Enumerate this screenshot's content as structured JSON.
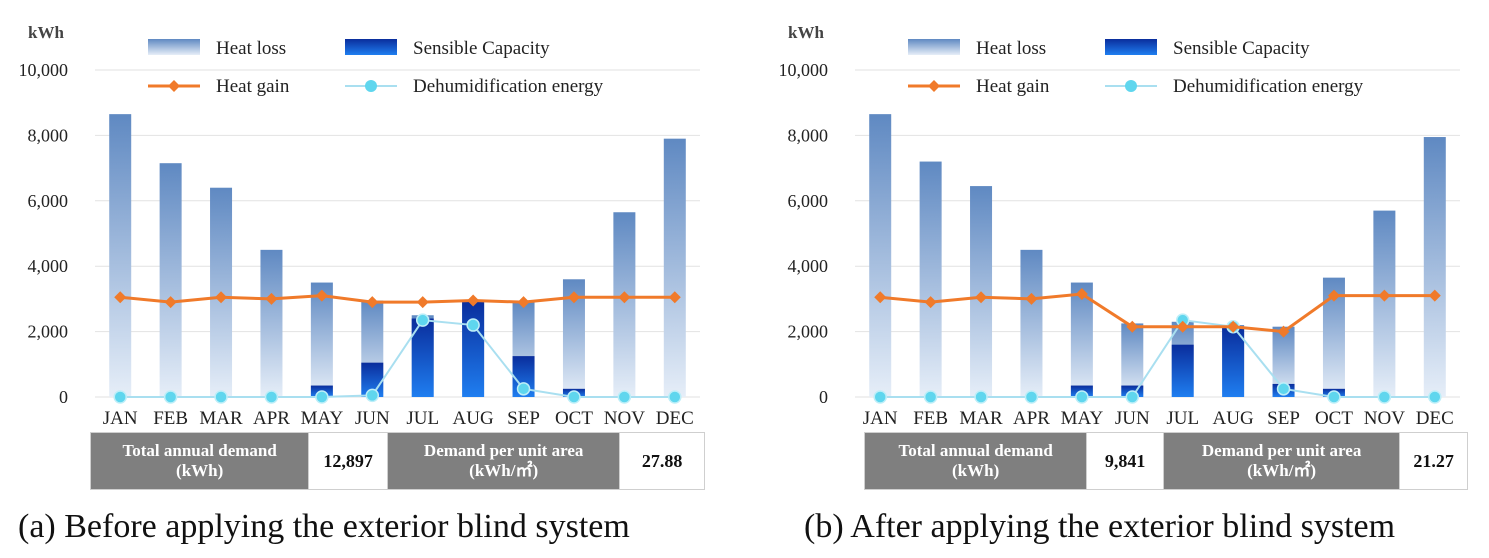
{
  "chart_data": [
    {
      "type": "bar",
      "caption": "(a) Before applying the exterior blind system",
      "ylabel": "kWh",
      "ylim": [
        0,
        10000
      ],
      "yticks": [
        "10,000",
        "8,000",
        "6,000",
        "4,000",
        "2,000",
        "0"
      ],
      "categories": [
        "JAN",
        "FEB",
        "MAR",
        "APR",
        "MAY",
        "JUN",
        "JUL",
        "AUG",
        "SEP",
        "OCT",
        "NOV",
        "DEC"
      ],
      "series": [
        {
          "name": "Heat loss",
          "kind": "bar-gradient",
          "values": [
            8650,
            7150,
            6400,
            4500,
            3500,
            2950,
            2500,
            2900,
            2900,
            3600,
            5650,
            7900
          ]
        },
        {
          "name": "Sensible Capacity",
          "kind": "bar-solid",
          "values": [
            0,
            0,
            0,
            0,
            350,
            1050,
            2400,
            2950,
            1250,
            250,
            0,
            0
          ]
        },
        {
          "name": "Heat gain",
          "kind": "line-diamond",
          "values": [
            3050,
            2900,
            3050,
            3000,
            3100,
            2900,
            2900,
            2950,
            2900,
            3050,
            3050,
            3050
          ]
        },
        {
          "name": "Dehumidification energy",
          "kind": "line-circle",
          "values": [
            0,
            0,
            0,
            0,
            0,
            50,
            2350,
            2200,
            250,
            0,
            0,
            0
          ]
        }
      ],
      "legend": [
        "Heat loss",
        "Sensible Capacity",
        "Heat gain",
        "Dehumidification energy"
      ],
      "summary": {
        "total_label_1": "Total annual demand",
        "total_label_2": "(kWh)",
        "total_value": "12,897",
        "unit_label_1": "Demand per unit area",
        "unit_label_2": "(kWh/㎡)",
        "unit_value": "27.88"
      }
    },
    {
      "type": "bar",
      "caption": "(b) After applying the exterior blind system",
      "ylabel": "kWh",
      "ylim": [
        0,
        10000
      ],
      "yticks": [
        "10,000",
        "8,000",
        "6,000",
        "4,000",
        "2,000",
        "0"
      ],
      "categories": [
        "JAN",
        "FEB",
        "MAR",
        "APR",
        "MAY",
        "JUN",
        "JUL",
        "AUG",
        "SEP",
        "OCT",
        "NOV",
        "DEC"
      ],
      "series": [
        {
          "name": "Heat loss",
          "kind": "bar-gradient",
          "values": [
            8650,
            7200,
            6450,
            4500,
            3500,
            2250,
            2300,
            2200,
            2150,
            3650,
            5700,
            7950
          ]
        },
        {
          "name": "Sensible Capacity",
          "kind": "bar-solid",
          "values": [
            0,
            0,
            0,
            0,
            350,
            350,
            1600,
            2150,
            400,
            250,
            0,
            0
          ]
        },
        {
          "name": "Heat gain",
          "kind": "line-diamond",
          "values": [
            3050,
            2900,
            3050,
            3000,
            3150,
            2150,
            2150,
            2150,
            2000,
            3100,
            3100,
            3100
          ]
        },
        {
          "name": "Dehumidification energy",
          "kind": "line-circle",
          "values": [
            0,
            0,
            0,
            0,
            0,
            0,
            2350,
            2150,
            250,
            0,
            0,
            0
          ]
        }
      ],
      "legend": [
        "Heat loss",
        "Sensible Capacity",
        "Heat gain",
        "Dehumidification energy"
      ],
      "summary": {
        "total_label_1": "Total annual demand",
        "total_label_2": "(kWh)",
        "total_value": "9,841",
        "unit_label_1": "Demand per unit area",
        "unit_label_2": "(kWh/㎡)",
        "unit_value": "21.27"
      }
    }
  ],
  "colors": {
    "heat_loss_top": "#5f89c2",
    "heat_loss_bottom": "#e6eef8",
    "sensible_top": "#0a2d9c",
    "sensible_bottom": "#1f7ef0",
    "heat_gain": "#f07a2a",
    "dehumidification": "#5fd6ee",
    "dehumidification_line": "#a9dff0",
    "grid": "#e2e2e2"
  }
}
